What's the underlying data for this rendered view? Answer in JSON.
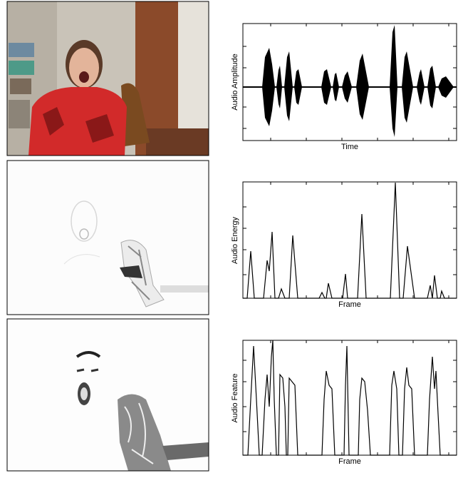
{
  "figure": {
    "panels": [
      {
        "ylabel": "Audio Amplitude",
        "xlabel": "Time"
      },
      {
        "ylabel": "Audio Energy",
        "xlabel": "Frame"
      },
      {
        "ylabel": "Audio Feature",
        "xlabel": "Frame"
      }
    ]
  }
}
